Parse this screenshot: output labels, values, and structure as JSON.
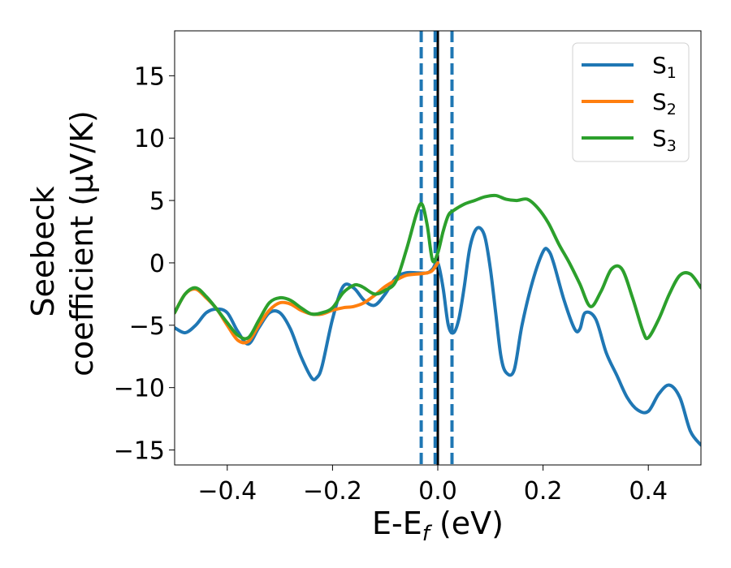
{
  "chart_data": {
    "type": "line",
    "xlabel": "E-E",
    "xlabel_sub": "f",
    "xlabel_unit": " (eV)",
    "ylabel_line1": "Seebeck",
    "ylabel_line2": "coefficient  (μV/K)",
    "xlim": [
      -0.5,
      0.5
    ],
    "ylim": [
      -16.2,
      18.6
    ],
    "xticks": [
      -0.4,
      -0.2,
      0.0,
      0.2,
      0.4
    ],
    "xtick_labels": [
      "−0.4",
      "−0.2",
      "0.0",
      "0.2",
      "0.4"
    ],
    "yticks": [
      -15,
      -10,
      -5,
      0,
      5,
      10,
      15
    ],
    "ytick_labels": [
      "−15",
      "−10",
      "−5",
      "0",
      "5",
      "10",
      "15"
    ],
    "grid": false,
    "legend_position": "top-right",
    "vertical_lines": [
      {
        "x": 0.0,
        "style": "solid",
        "color": "#000000"
      },
      {
        "x": -0.0315,
        "style": "dashed",
        "color": "#1f77b4"
      },
      {
        "x": -0.005,
        "style": "dashed",
        "color": "#1f77b4"
      },
      {
        "x": 0.027,
        "style": "dashed",
        "color": "#1f77b4"
      }
    ],
    "series": [
      {
        "name": "S",
        "name_sub": "1",
        "color": "#1f77b4",
        "x": [
          -0.5,
          -0.48,
          -0.46,
          -0.44,
          -0.42,
          -0.4,
          -0.38,
          -0.36,
          -0.34,
          -0.32,
          -0.3,
          -0.28,
          -0.26,
          -0.24,
          -0.23,
          -0.22,
          -0.2,
          -0.18,
          -0.16,
          -0.14,
          -0.12,
          -0.1,
          -0.08,
          -0.06,
          -0.04,
          -0.02,
          -0.01,
          0.0,
          0.01,
          0.02,
          0.03,
          0.04,
          0.05,
          0.06,
          0.07,
          0.08,
          0.09,
          0.1,
          0.11,
          0.12,
          0.13,
          0.145,
          0.16,
          0.18,
          0.2,
          0.21,
          0.22,
          0.24,
          0.26,
          0.27,
          0.28,
          0.3,
          0.32,
          0.34,
          0.36,
          0.38,
          0.4,
          0.42,
          0.44,
          0.46,
          0.48,
          0.5
        ],
        "y": [
          -5.2,
          -5.6,
          -5.0,
          -4.0,
          -3.7,
          -4.0,
          -5.5,
          -6.5,
          -5.2,
          -4.0,
          -4.0,
          -5.3,
          -7.5,
          -9.2,
          -9.2,
          -8.3,
          -4.5,
          -1.9,
          -2.0,
          -3.0,
          -3.4,
          -2.5,
          -1.2,
          -0.8,
          -0.8,
          -0.8,
          -0.5,
          0.0,
          -2.0,
          -5.0,
          -5.6,
          -4.5,
          -2.0,
          1.0,
          2.5,
          2.8,
          2.0,
          -0.5,
          -4.0,
          -7.5,
          -8.8,
          -8.6,
          -5.0,
          -1.5,
          0.9,
          1.0,
          0.0,
          -3.0,
          -5.3,
          -5.3,
          -4.0,
          -4.5,
          -7.2,
          -9.0,
          -10.8,
          -11.8,
          -11.9,
          -10.5,
          -9.8,
          -10.8,
          -13.5,
          -14.6
        ]
      },
      {
        "name": "S",
        "name_sub": "2",
        "color": "#ff7f0e",
        "x": [
          -0.5,
          -0.48,
          -0.46,
          -0.44,
          -0.42,
          -0.4,
          -0.38,
          -0.36,
          -0.34,
          -0.32,
          -0.3,
          -0.28,
          -0.26,
          -0.24,
          -0.22,
          -0.2,
          -0.18,
          -0.16,
          -0.14,
          -0.12,
          -0.1,
          -0.08,
          -0.06,
          -0.04,
          -0.02,
          -0.01,
          0.0
        ],
        "y": [
          -4.0,
          -2.5,
          -2.1,
          -2.8,
          -3.7,
          -5.0,
          -6.2,
          -6.3,
          -5.0,
          -3.8,
          -3.2,
          -3.3,
          -3.8,
          -4.1,
          -4.1,
          -3.8,
          -3.6,
          -3.5,
          -3.2,
          -2.6,
          -1.9,
          -1.4,
          -1.0,
          -0.9,
          -0.8,
          -0.6,
          0.0
        ]
      },
      {
        "name": "S",
        "name_sub": "3",
        "color": "#2ca02c",
        "x": [
          -0.5,
          -0.48,
          -0.46,
          -0.44,
          -0.42,
          -0.4,
          -0.38,
          -0.36,
          -0.34,
          -0.32,
          -0.3,
          -0.28,
          -0.26,
          -0.24,
          -0.22,
          -0.2,
          -0.18,
          -0.16,
          -0.15,
          -0.14,
          -0.12,
          -0.1,
          -0.08,
          -0.06,
          -0.04,
          -0.03,
          -0.02,
          -0.01,
          0.0,
          0.01,
          0.02,
          0.03,
          0.05,
          0.07,
          0.09,
          0.11,
          0.13,
          0.15,
          0.17,
          0.19,
          0.21,
          0.23,
          0.25,
          0.27,
          0.29,
          0.31,
          0.33,
          0.35,
          0.37,
          0.39,
          0.4,
          0.42,
          0.44,
          0.46,
          0.48,
          0.5
        ],
        "y": [
          -4.0,
          -2.5,
          -2.0,
          -2.7,
          -3.7,
          -4.8,
          -5.8,
          -6.0,
          -4.6,
          -3.2,
          -2.8,
          -3.0,
          -3.6,
          -4.1,
          -4.0,
          -3.6,
          -2.4,
          -1.8,
          -1.8,
          -2.0,
          -2.5,
          -2.2,
          -1.5,
          1.0,
          4.0,
          4.7,
          3.0,
          0.2,
          0.8,
          2.5,
          3.8,
          4.2,
          4.7,
          5.0,
          5.3,
          5.4,
          5.1,
          5.0,
          5.1,
          4.4,
          3.2,
          1.5,
          0.0,
          -1.7,
          -3.5,
          -2.3,
          -0.5,
          -0.5,
          -2.8,
          -5.5,
          -6.0,
          -4.5,
          -2.5,
          -1.0,
          -0.9,
          -2.0
        ]
      }
    ]
  }
}
